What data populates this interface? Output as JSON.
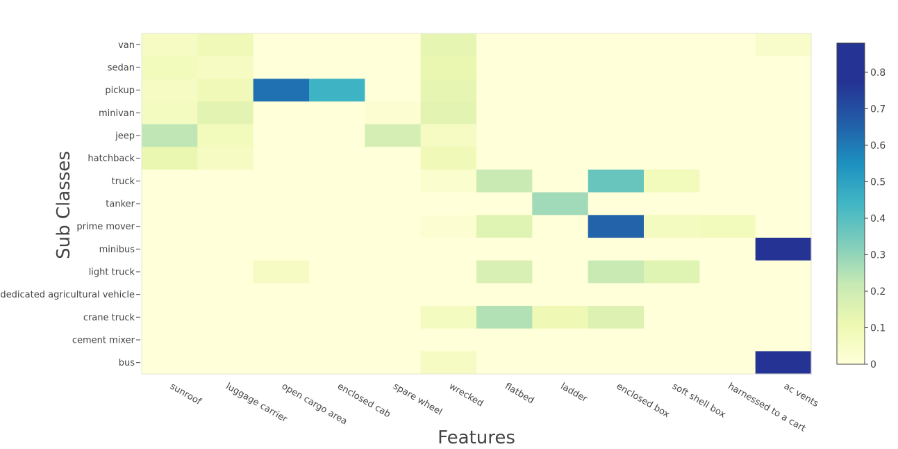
{
  "chart_data": {
    "type": "heatmap",
    "title": "",
    "xlabel": "Features",
    "ylabel": "Sub Classes",
    "x_categories": [
      "sunroof",
      "luggage carrier",
      "open cargo area",
      "enclosed cab",
      "spare wheel",
      "wrecked",
      "flatbed",
      "ladder",
      "enclosed box",
      "soft shell box",
      "harnessed to a cart",
      "ac vents"
    ],
    "y_categories": [
      "van",
      "sedan",
      "pickup",
      "minivan",
      "jeep",
      "hatchback",
      "truck",
      "tanker",
      "prime mover",
      "minibus",
      "light truck",
      "dedicated agricultural vehicle",
      "crane truck",
      "cement mixer",
      "bus"
    ],
    "values": [
      [
        0.06,
        0.09,
        0.0,
        0.0,
        0.0,
        0.13,
        0.0,
        0.0,
        0.0,
        0.0,
        0.0,
        0.04
      ],
      [
        0.08,
        0.06,
        0.0,
        0.0,
        0.0,
        0.12,
        0.0,
        0.0,
        0.0,
        0.0,
        0.0,
        0.0
      ],
      [
        0.06,
        0.09,
        0.62,
        0.45,
        0.0,
        0.13,
        0.0,
        0.0,
        0.0,
        0.0,
        0.0,
        0.0
      ],
      [
        0.07,
        0.14,
        0.0,
        0.0,
        0.02,
        0.14,
        0.0,
        0.0,
        0.0,
        0.0,
        0.0,
        0.0
      ],
      [
        0.23,
        0.08,
        0.0,
        0.0,
        0.18,
        0.06,
        0.0,
        0.0,
        0.0,
        0.0,
        0.0,
        0.0
      ],
      [
        0.12,
        0.06,
        0.0,
        0.0,
        0.0,
        0.09,
        0.0,
        0.0,
        0.0,
        0.0,
        0.0,
        0.0
      ],
      [
        0.0,
        0.0,
        0.0,
        0.0,
        0.0,
        0.03,
        0.21,
        0.0,
        0.37,
        0.08,
        0.0,
        0.0
      ],
      [
        0.0,
        0.0,
        0.0,
        0.0,
        0.0,
        0.0,
        0.0,
        0.28,
        0.0,
        0.0,
        0.0,
        0.0
      ],
      [
        0.0,
        0.0,
        0.0,
        0.0,
        0.0,
        0.02,
        0.15,
        0.0,
        0.65,
        0.07,
        0.08,
        0.0
      ],
      [
        0.0,
        0.0,
        0.0,
        0.0,
        0.0,
        0.0,
        0.0,
        0.0,
        0.0,
        0.0,
        0.0,
        0.87
      ],
      [
        0.0,
        0.0,
        0.06,
        0.0,
        0.0,
        0.0,
        0.17,
        0.0,
        0.21,
        0.15,
        0.0,
        0.0
      ],
      [
        0.0,
        0.0,
        0.0,
        0.0,
        0.0,
        0.0,
        0.0,
        0.0,
        0.0,
        0.0,
        0.0,
        0.0
      ],
      [
        0.0,
        0.0,
        0.0,
        0.0,
        0.0,
        0.07,
        0.25,
        0.1,
        0.16,
        0.0,
        0.0,
        0.0
      ],
      [
        0.0,
        0.0,
        0.0,
        0.0,
        0.0,
        0.0,
        0.0,
        0.0,
        0.0,
        0.0,
        0.0,
        0.0
      ],
      [
        0.0,
        0.0,
        0.0,
        0.0,
        0.0,
        0.06,
        0.0,
        0.0,
        0.0,
        0.0,
        0.0,
        0.87
      ]
    ],
    "zlim": [
      0,
      0.88
    ],
    "colorscale": "YlGnBu",
    "colorscale_stops": [
      [
        0.0,
        "#ffffd9"
      ],
      [
        0.125,
        "#edf8b1"
      ],
      [
        0.25,
        "#c7e9b4"
      ],
      [
        0.375,
        "#7fcdbb"
      ],
      [
        0.5,
        "#41b6c4"
      ],
      [
        0.625,
        "#1d91c0"
      ],
      [
        0.75,
        "#225ea8"
      ],
      [
        0.875,
        "#253494"
      ],
      [
        1.0,
        "#253494"
      ]
    ],
    "colorbar_ticks": [
      0,
      0.1,
      0.2,
      0.3,
      0.4,
      0.5,
      0.6,
      0.7,
      0.8
    ],
    "colorbar_tick_labels": [
      "0",
      "0.1",
      "0.2",
      "0.3",
      "0.4",
      "0.5",
      "0.6",
      "0.7",
      "0.8"
    ],
    "legend": "colorbar-right",
    "grid": false
  }
}
